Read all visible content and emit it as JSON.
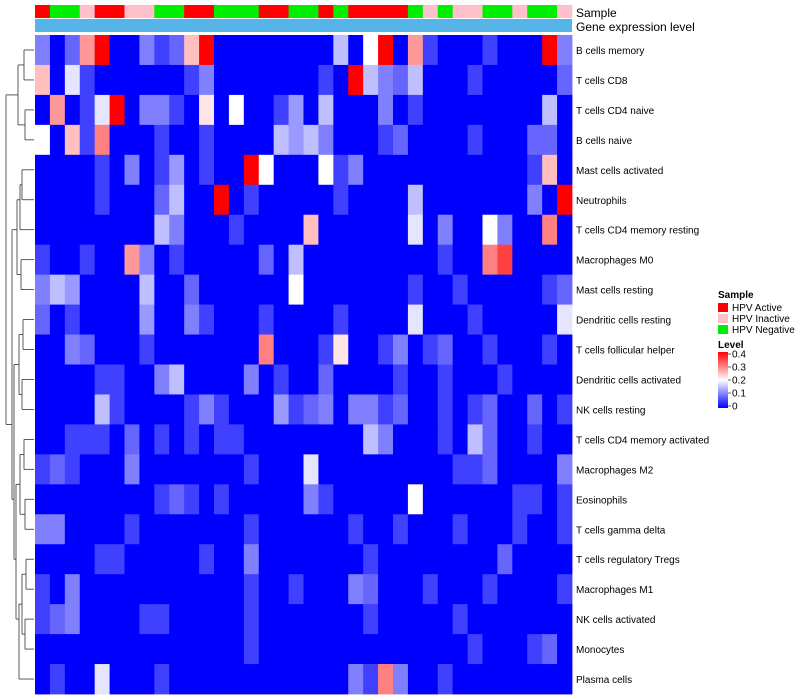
{
  "chart_data": {
    "type": "heatmap",
    "annotation_tracks": [
      {
        "label": "Sample"
      },
      {
        "label": "Gene expression level"
      }
    ],
    "sample_groups": [
      "HPV Active",
      "HPV Negative",
      "HPV Negative",
      "HPV Inactive",
      "HPV Active",
      "HPV Active",
      "HPV Inactive",
      "HPV Inactive",
      "HPV Negative",
      "HPV Negative",
      "HPV Active",
      "HPV Active",
      "HPV Negative",
      "HPV Negative",
      "HPV Negative",
      "HPV Active",
      "HPV Active",
      "HPV Negative",
      "HPV Negative",
      "HPV Active",
      "HPV Negative",
      "HPV Active",
      "HPV Active",
      "HPV Active",
      "HPV Active",
      "HPV Negative",
      "HPV Inactive",
      "HPV Negative",
      "HPV Inactive",
      "HPV Inactive",
      "HPV Negative",
      "HPV Negative",
      "HPV Inactive",
      "HPV Negative",
      "HPV Negative",
      "HPV Inactive"
    ],
    "rows": [
      "B cells memory",
      "T cells CD8",
      "T cells CD4 naive",
      "B cells naive",
      "Mast cells activated",
      "Neutrophils",
      "T cells CD4 memory resting",
      "Macrophages M0",
      "Mast cells resting",
      "Dendritic cells resting",
      "T cells follicular helper",
      "Dendritic cells activated",
      "NK cells resting",
      "T cells CD4 memory activated",
      "Macrophages M2",
      "Eosinophils",
      "T cells gamma delta",
      "T cells regulatory  Tregs",
      "Macrophages M1",
      "NK cells activated",
      "Monocytes",
      "Plasma cells"
    ],
    "values": [
      [
        0.1,
        0.0,
        0.08,
        0.28,
        0.4,
        0.0,
        0.0,
        0.1,
        0.05,
        0.08,
        0.25,
        0.4,
        0.0,
        0.0,
        0.0,
        0.0,
        0.0,
        0.0,
        0.0,
        0.0,
        0.15,
        0.0,
        0.2,
        0.4,
        0.0,
        0.28,
        0.05,
        0.0,
        0.0,
        0.0,
        0.05,
        0.0,
        0.0,
        0.0,
        0.4,
        0.1
      ],
      [
        0.25,
        0.0,
        0.18,
        0.05,
        0.0,
        0.0,
        0.0,
        0.0,
        0.0,
        0.0,
        0.05,
        0.1,
        0.0,
        0.0,
        0.0,
        0.0,
        0.0,
        0.0,
        0.0,
        0.05,
        0.0,
        0.4,
        0.15,
        0.1,
        0.08,
        0.15,
        0.0,
        0.0,
        0.0,
        0.05,
        0.0,
        0.0,
        0.0,
        0.0,
        0.0,
        0.08
      ],
      [
        0.0,
        0.28,
        0.0,
        0.05,
        0.18,
        0.4,
        0.0,
        0.1,
        0.1,
        0.05,
        0.0,
        0.22,
        0.0,
        0.2,
        0.0,
        0.0,
        0.05,
        0.12,
        0.0,
        0.15,
        0.0,
        0.0,
        0.0,
        0.1,
        0.0,
        0.05,
        0.0,
        0.0,
        0.0,
        0.0,
        0.0,
        0.0,
        0.0,
        0.0,
        0.15,
        0.0
      ],
      [
        0.2,
        0.0,
        0.25,
        0.05,
        0.3,
        0.0,
        0.0,
        0.0,
        0.05,
        0.0,
        0.0,
        0.05,
        0.0,
        0.0,
        0.0,
        0.0,
        0.15,
        0.12,
        0.15,
        0.1,
        0.0,
        0.0,
        0.0,
        0.05,
        0.08,
        0.0,
        0.0,
        0.0,
        0.0,
        0.05,
        0.0,
        0.0,
        0.0,
        0.08,
        0.08,
        0.0
      ],
      [
        0.0,
        0.0,
        0.0,
        0.0,
        0.05,
        0.0,
        0.1,
        0.0,
        0.05,
        0.12,
        0.0,
        0.05,
        0.0,
        0.0,
        0.4,
        0.2,
        0.0,
        0.0,
        0.0,
        0.2,
        0.05,
        0.1,
        0.0,
        0.0,
        0.0,
        0.0,
        0.0,
        0.0,
        0.0,
        0.0,
        0.0,
        0.0,
        0.0,
        0.05,
        0.25,
        0.0
      ],
      [
        0.0,
        0.0,
        0.0,
        0.0,
        0.05,
        0.0,
        0.0,
        0.0,
        0.08,
        0.15,
        0.0,
        0.0,
        0.4,
        0.0,
        0.05,
        0.0,
        0.0,
        0.0,
        0.0,
        0.0,
        0.05,
        0.0,
        0.0,
        0.0,
        0.0,
        0.15,
        0.0,
        0.0,
        0.0,
        0.0,
        0.0,
        0.0,
        0.0,
        0.1,
        0.0,
        0.4
      ],
      [
        0.0,
        0.0,
        0.0,
        0.0,
        0.0,
        0.0,
        0.0,
        0.0,
        0.15,
        0.1,
        0.0,
        0.0,
        0.0,
        0.05,
        0.0,
        0.0,
        0.0,
        0.0,
        0.25,
        0.0,
        0.0,
        0.0,
        0.0,
        0.0,
        0.0,
        0.18,
        0.0,
        0.1,
        0.0,
        0.0,
        0.2,
        0.1,
        0.0,
        0.0,
        0.3,
        0.0
      ],
      [
        0.05,
        0.0,
        0.0,
        0.05,
        0.0,
        0.0,
        0.28,
        0.1,
        0.0,
        0.05,
        0.0,
        0.0,
        0.0,
        0.0,
        0.0,
        0.08,
        0.0,
        0.15,
        0.0,
        0.0,
        0.0,
        0.0,
        0.0,
        0.0,
        0.0,
        0.0,
        0.0,
        0.05,
        0.0,
        0.0,
        0.3,
        0.35,
        0.0,
        0.0,
        0.0,
        0.0
      ],
      [
        0.1,
        0.15,
        0.12,
        0.0,
        0.0,
        0.0,
        0.0,
        0.15,
        0.0,
        0.0,
        0.08,
        0.0,
        0.0,
        0.0,
        0.0,
        0.0,
        0.0,
        0.2,
        0.0,
        0.0,
        0.0,
        0.0,
        0.0,
        0.0,
        0.0,
        0.05,
        0.0,
        0.0,
        0.05,
        0.0,
        0.0,
        0.0,
        0.0,
        0.0,
        0.05,
        0.08
      ],
      [
        0.08,
        0.0,
        0.05,
        0.0,
        0.0,
        0.0,
        0.0,
        0.12,
        0.0,
        0.0,
        0.1,
        0.05,
        0.0,
        0.0,
        0.0,
        0.05,
        0.0,
        0.0,
        0.0,
        0.0,
        0.05,
        0.0,
        0.0,
        0.0,
        0.0,
        0.18,
        0.0,
        0.0,
        0.0,
        0.05,
        0.0,
        0.0,
        0.0,
        0.0,
        0.0,
        0.18
      ],
      [
        0.0,
        0.0,
        0.1,
        0.08,
        0.0,
        0.0,
        0.0,
        0.05,
        0.0,
        0.0,
        0.0,
        0.0,
        0.0,
        0.0,
        0.0,
        0.3,
        0.0,
        0.0,
        0.0,
        0.05,
        0.22,
        0.0,
        0.0,
        0.05,
        0.1,
        0.0,
        0.05,
        0.08,
        0.0,
        0.0,
        0.05,
        0.0,
        0.0,
        0.0,
        0.05,
        0.0
      ],
      [
        0.0,
        0.0,
        0.0,
        0.0,
        0.05,
        0.05,
        0.0,
        0.0,
        0.1,
        0.15,
        0.0,
        0.0,
        0.0,
        0.0,
        0.1,
        0.0,
        0.05,
        0.0,
        0.0,
        0.08,
        0.0,
        0.0,
        0.0,
        0.0,
        0.05,
        0.0,
        0.0,
        0.05,
        0.0,
        0.0,
        0.0,
        0.05,
        0.0,
        0.0,
        0.0,
        0.0
      ],
      [
        0.0,
        0.0,
        0.0,
        0.0,
        0.15,
        0.05,
        0.0,
        0.0,
        0.0,
        0.0,
        0.05,
        0.1,
        0.05,
        0.0,
        0.0,
        0.0,
        0.12,
        0.05,
        0.08,
        0.1,
        0.0,
        0.1,
        0.1,
        0.05,
        0.08,
        0.0,
        0.0,
        0.05,
        0.0,
        0.05,
        0.08,
        0.0,
        0.0,
        0.08,
        0.0,
        0.05
      ],
      [
        0.0,
        0.0,
        0.05,
        0.05,
        0.05,
        0.0,
        0.08,
        0.0,
        0.05,
        0.0,
        0.05,
        0.0,
        0.05,
        0.05,
        0.0,
        0.0,
        0.0,
        0.0,
        0.0,
        0.0,
        0.0,
        0.0,
        0.15,
        0.1,
        0.0,
        0.0,
        0.0,
        0.05,
        0.0,
        0.15,
        0.08,
        0.0,
        0.0,
        0.05,
        0.0,
        0.0
      ],
      [
        0.05,
        0.08,
        0.05,
        0.0,
        0.0,
        0.0,
        0.1,
        0.0,
        0.0,
        0.0,
        0.0,
        0.0,
        0.0,
        0.0,
        0.05,
        0.0,
        0.0,
        0.0,
        0.18,
        0.0,
        0.0,
        0.0,
        0.0,
        0.0,
        0.0,
        0.0,
        0.0,
        0.0,
        0.05,
        0.05,
        0.08,
        0.0,
        0.0,
        0.0,
        0.0,
        0.1
      ],
      [
        0.0,
        0.0,
        0.0,
        0.0,
        0.0,
        0.0,
        0.0,
        0.0,
        0.05,
        0.08,
        0.05,
        0.0,
        0.05,
        0.0,
        0.0,
        0.0,
        0.0,
        0.0,
        0.1,
        0.05,
        0.0,
        0.0,
        0.0,
        0.0,
        0.0,
        0.2,
        0.0,
        0.0,
        0.0,
        0.0,
        0.0,
        0.0,
        0.05,
        0.05,
        0.0,
        0.05
      ],
      [
        0.1,
        0.1,
        0.0,
        0.0,
        0.0,
        0.0,
        0.05,
        0.0,
        0.0,
        0.0,
        0.0,
        0.0,
        0.0,
        0.0,
        0.05,
        0.0,
        0.0,
        0.0,
        0.0,
        0.0,
        0.0,
        0.05,
        0.0,
        0.0,
        0.05,
        0.0,
        0.0,
        0.0,
        0.05,
        0.0,
        0.0,
        0.0,
        0.05,
        0.0,
        0.0,
        0.05
      ],
      [
        0.0,
        0.0,
        0.0,
        0.0,
        0.05,
        0.05,
        0.0,
        0.0,
        0.0,
        0.0,
        0.0,
        0.05,
        0.0,
        0.0,
        0.1,
        0.0,
        0.0,
        0.0,
        0.0,
        0.0,
        0.0,
        0.0,
        0.05,
        0.0,
        0.0,
        0.0,
        0.0,
        0.0,
        0.0,
        0.0,
        0.0,
        0.08,
        0.0,
        0.0,
        0.0,
        0.0
      ],
      [
        0.05,
        0.0,
        0.1,
        0.0,
        0.0,
        0.0,
        0.0,
        0.0,
        0.0,
        0.0,
        0.0,
        0.0,
        0.0,
        0.0,
        0.05,
        0.0,
        0.0,
        0.05,
        0.0,
        0.0,
        0.0,
        0.1,
        0.08,
        0.0,
        0.0,
        0.0,
        0.05,
        0.0,
        0.0,
        0.0,
        0.05,
        0.0,
        0.0,
        0.0,
        0.0,
        0.05
      ],
      [
        0.05,
        0.08,
        0.1,
        0.0,
        0.0,
        0.0,
        0.0,
        0.05,
        0.05,
        0.0,
        0.0,
        0.0,
        0.0,
        0.0,
        0.05,
        0.0,
        0.0,
        0.0,
        0.0,
        0.0,
        0.0,
        0.0,
        0.05,
        0.0,
        0.0,
        0.0,
        0.0,
        0.0,
        0.05,
        0.0,
        0.0,
        0.0,
        0.0,
        0.0,
        0.0,
        0.0
      ],
      [
        0.0,
        0.0,
        0.0,
        0.0,
        0.0,
        0.0,
        0.0,
        0.0,
        0.0,
        0.0,
        0.0,
        0.0,
        0.0,
        0.0,
        0.05,
        0.0,
        0.0,
        0.0,
        0.0,
        0.0,
        0.0,
        0.0,
        0.0,
        0.0,
        0.0,
        0.0,
        0.0,
        0.0,
        0.0,
        0.05,
        0.0,
        0.0,
        0.0,
        0.05,
        0.08,
        0.0
      ],
      [
        0.0,
        0.05,
        0.0,
        0.0,
        0.18,
        0.0,
        0.0,
        0.0,
        0.05,
        0.0,
        0.0,
        0.0,
        0.0,
        0.0,
        0.0,
        0.0,
        0.0,
        0.0,
        0.0,
        0.0,
        0.0,
        0.1,
        0.05,
        0.3,
        0.1,
        0.0,
        0.0,
        0.05,
        0.0,
        0.0,
        0.0,
        0.0,
        0.0,
        0.0,
        0.0,
        0.0
      ]
    ],
    "legend_sample": {
      "title": "Sample",
      "entries": [
        {
          "label": "HPV Active",
          "color": "#ff0000"
        },
        {
          "label": "HPV Inactive",
          "color": "#ffc0cb"
        },
        {
          "label": "HPV Negative",
          "color": "#00ee00"
        }
      ]
    },
    "legend_level": {
      "title": "Level",
      "range": [
        0,
        0.4
      ],
      "ticks": [
        "0.4",
        "0.3",
        "0.2",
        "0.1",
        "0"
      ]
    },
    "expression_track_color": "#56b4e9",
    "colors": {
      "low": "#0000ff",
      "mid": "#ffffff",
      "high": "#ff0000"
    }
  }
}
